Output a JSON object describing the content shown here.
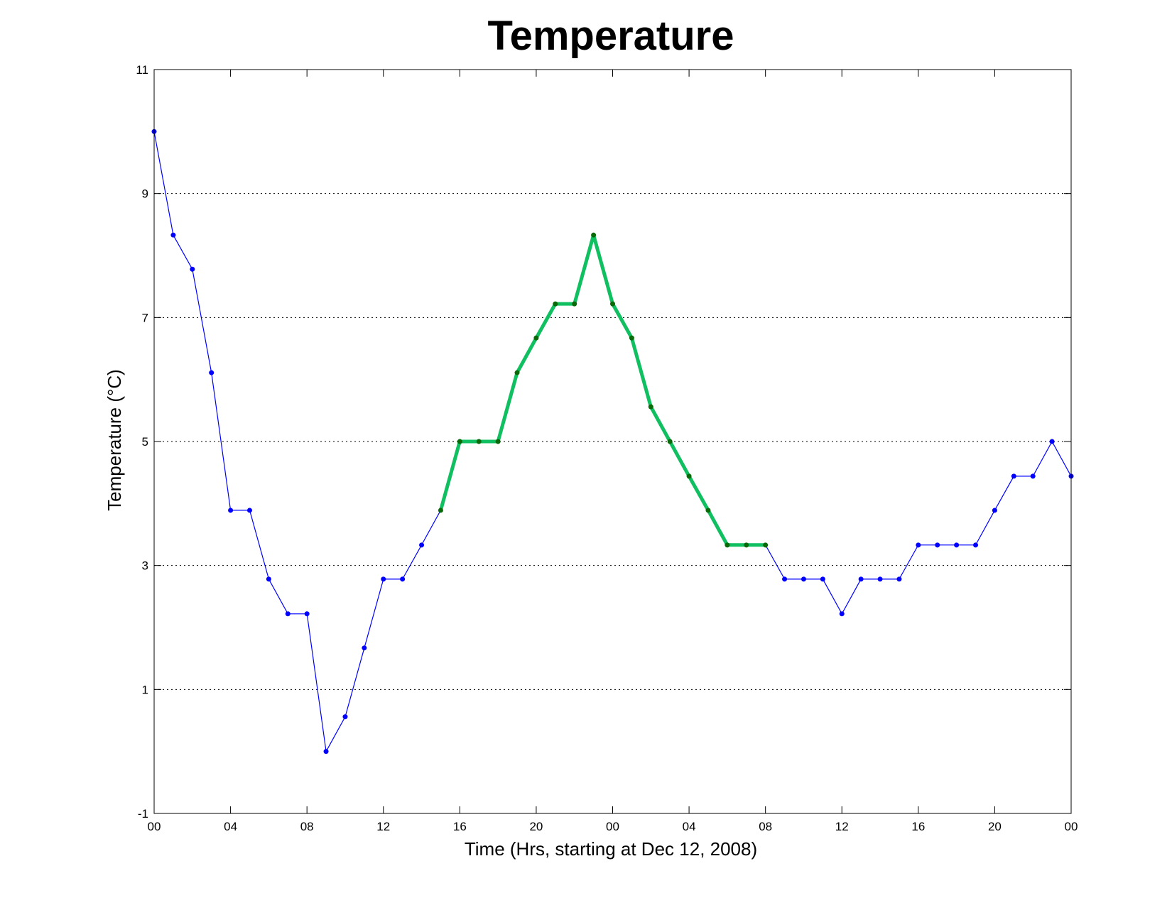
{
  "chart_data": {
    "type": "line",
    "title": "Temperature",
    "xlabel": "Time (Hrs, starting at Dec 12, 2008)",
    "ylabel": "Temperature (°C)",
    "x_unit": "hours",
    "xlim": [
      0,
      48
    ],
    "ylim": [
      -1,
      11
    ],
    "x_ticks": [
      0,
      4,
      8,
      12,
      16,
      20,
      24,
      28,
      32,
      36,
      40,
      44,
      48
    ],
    "x_tick_labels": [
      "00",
      "04",
      "08",
      "12",
      "16",
      "20",
      "00",
      "04",
      "08",
      "12",
      "16",
      "20",
      "00"
    ],
    "y_ticks": [
      -1,
      1,
      3,
      5,
      7,
      9,
      11
    ],
    "y_tick_labels": [
      "-1",
      "1",
      "3",
      "5",
      "7",
      "9",
      "11"
    ],
    "grid": "horizontal-dotted",
    "x": [
      0,
      1,
      2,
      3,
      4,
      5,
      6,
      7,
      8,
      9,
      10,
      11,
      12,
      13,
      14,
      15,
      16,
      17,
      18,
      19,
      20,
      21,
      22,
      23,
      24,
      25,
      26,
      27,
      28,
      29,
      30,
      31,
      32,
      33,
      34,
      35,
      36,
      37,
      38,
      39,
      40,
      41,
      42,
      43,
      44,
      45,
      46,
      47,
      48
    ],
    "y": [
      10.0,
      8.33,
      7.78,
      6.11,
      3.89,
      3.89,
      2.78,
      2.22,
      2.22,
      0.0,
      0.56,
      1.67,
      2.78,
      2.78,
      3.33,
      3.89,
      5.0,
      5.0,
      5.0,
      6.11,
      6.67,
      7.22,
      7.22,
      8.33,
      7.22,
      6.67,
      5.56,
      5.0,
      4.44,
      3.89,
      3.33,
      3.33,
      3.33,
      2.78,
      2.78,
      2.78,
      2.22,
      2.78,
      2.78,
      2.78,
      3.33,
      3.33,
      3.33,
      3.33,
      3.89,
      4.44,
      4.44,
      5.0,
      4.44
    ],
    "highlight_range": [
      15,
      32
    ],
    "colors": {
      "base_line": "#0000ff",
      "base_marker": "#0000ff",
      "highlight_line": "#10c060",
      "highlight_marker": "#0a6a0a",
      "grid": "#000000",
      "axis": "#000000"
    }
  }
}
